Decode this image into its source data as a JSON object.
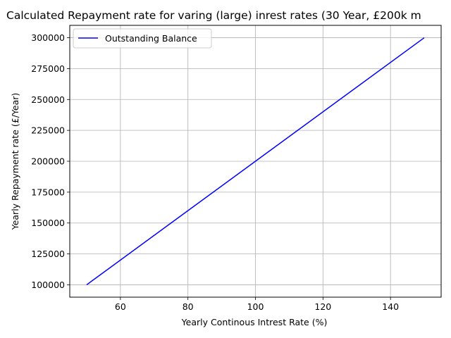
{
  "chart_data": {
    "type": "line",
    "title": "Calculated Repayment rate for varing (large) inrest rates (30 Year, £200k m",
    "xlabel": "Yearly Continous Intrest Rate (%)",
    "ylabel": "Yearly Repayment rate (£/Year)",
    "xlim": [
      45,
      155
    ],
    "ylim": [
      90000,
      310000
    ],
    "x_ticks": [
      60,
      80,
      100,
      120,
      140
    ],
    "y_ticks": [
      100000,
      125000,
      150000,
      175000,
      200000,
      225000,
      250000,
      275000,
      300000
    ],
    "grid": true,
    "legend_position": "top-left",
    "series": [
      {
        "name": "Outstanding Balance",
        "color": "#0000ff",
        "x": [
          50,
          150
        ],
        "y": [
          100000,
          300000
        ]
      }
    ]
  }
}
